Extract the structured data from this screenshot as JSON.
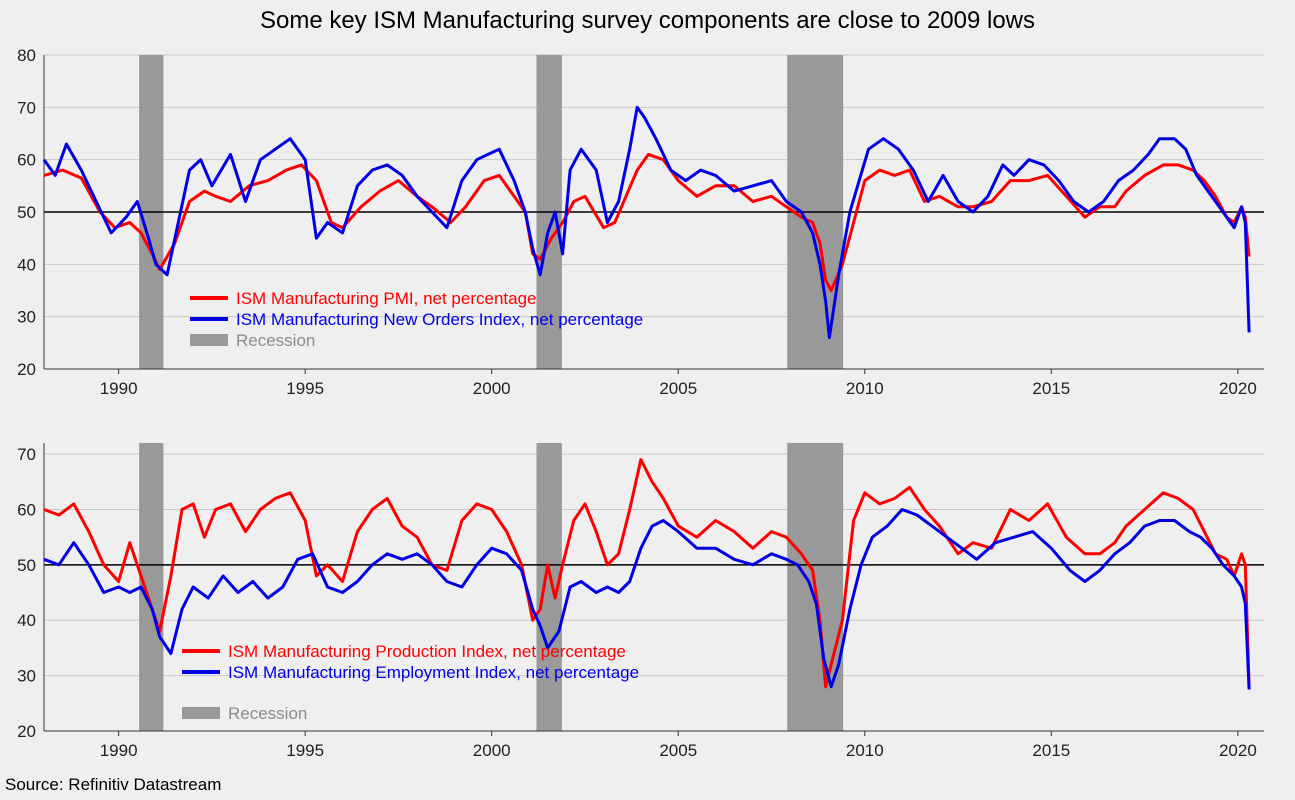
{
  "title": "Some key ISM Manufacturing survey components are close to 2009 lows",
  "source": "Source: Refinitiv Datastream",
  "colors": {
    "red": "#ff0000",
    "blue": "#0000e6",
    "recession": "#999999",
    "recession_text": "#8c8c8c",
    "background": "#efefef"
  },
  "recessions": [
    [
      1990.55,
      1991.2
    ],
    [
      2001.2,
      2001.88
    ],
    [
      2007.92,
      2009.42
    ]
  ],
  "chart_data": [
    {
      "type": "line",
      "ylim": [
        20,
        80
      ],
      "yticks": [
        20,
        30,
        40,
        50,
        60,
        70,
        80
      ],
      "xlim": [
        1988.0,
        2020.7
      ],
      "xticks": [
        1990,
        1995,
        2000,
        2005,
        2010,
        2015,
        2020
      ],
      "reference_line": 50,
      "legend": [
        "ISM Manufacturing PMI, net percentage",
        "ISM Manufacturing New Orders Index, net percentage",
        "Recession"
      ],
      "legend_placement": "lower-left",
      "series": [
        {
          "name": "ISM Manufacturing PMI, net percentage",
          "color": "#ff0000",
          "x": [
            1988,
            1988.5,
            1989,
            1989.5,
            1989.9,
            1990.3,
            1990.6,
            1990.9,
            1991.1,
            1991.5,
            1991.9,
            1992.3,
            1992.6,
            1993,
            1993.5,
            1994,
            1994.5,
            1994.9,
            1995.3,
            1995.7,
            1996,
            1996.5,
            1997,
            1997.5,
            1998,
            1998.4,
            1998.9,
            1999.3,
            1999.8,
            2000.2,
            2000.6,
            2000.9,
            2001.1,
            2001.3,
            2001.6,
            2001.9,
            2002.2,
            2002.5,
            2003,
            2003.3,
            2003.6,
            2003.9,
            2004.2,
            2004.6,
            2005,
            2005.5,
            2006,
            2006.5,
            2007,
            2007.5,
            2007.9,
            2008.3,
            2008.6,
            2008.8,
            2008.95,
            2009.1,
            2009.4,
            2009.7,
            2010,
            2010.4,
            2010.8,
            2011.2,
            2011.6,
            2012,
            2012.5,
            2012.9,
            2013.4,
            2013.9,
            2014.4,
            2014.9,
            2015.4,
            2015.9,
            2016.3,
            2016.7,
            2017,
            2017.5,
            2018,
            2018.4,
            2018.8,
            2019.1,
            2019.4,
            2019.7,
            2019.9,
            2020.1,
            2020.2,
            2020.3
          ],
          "y": [
            57,
            58,
            56.5,
            50,
            47,
            48,
            46,
            42,
            39,
            44,
            52,
            54,
            53,
            52,
            55,
            56,
            58,
            59,
            56,
            48,
            47,
            51,
            54,
            56,
            53,
            51,
            48,
            51,
            56,
            57,
            53,
            50,
            42,
            41,
            45,
            48,
            52,
            53,
            47,
            48,
            53,
            58,
            61,
            60,
            56,
            53,
            55,
            55,
            52,
            53,
            51,
            49,
            48,
            44,
            37,
            35,
            40,
            48,
            56,
            58,
            57,
            58,
            52,
            53,
            51,
            51,
            52,
            56,
            56,
            57,
            53,
            49,
            51,
            51,
            54,
            57,
            59,
            59,
            58,
            56,
            53,
            49,
            48,
            51,
            49,
            41.5
          ]
        },
        {
          "name": "ISM Manufacturing New Orders Index, net percentage",
          "color": "#0000e6",
          "x": [
            1988,
            1988.3,
            1988.6,
            1989,
            1989.4,
            1989.8,
            1990.2,
            1990.5,
            1990.8,
            1991,
            1991.3,
            1991.6,
            1991.9,
            1992.2,
            1992.5,
            1993,
            1993.4,
            1993.8,
            1994.2,
            1994.6,
            1995,
            1995.3,
            1995.6,
            1996,
            1996.4,
            1996.8,
            1997.2,
            1997.6,
            1998,
            1998.4,
            1998.8,
            1999.2,
            1999.6,
            1999.9,
            2000.2,
            2000.6,
            2000.9,
            2001.1,
            2001.3,
            2001.5,
            2001.7,
            2001.9,
            2002.1,
            2002.4,
            2002.8,
            2003.1,
            2003.4,
            2003.7,
            2003.9,
            2004.1,
            2004.4,
            2004.8,
            2005.2,
            2005.6,
            2006,
            2006.5,
            2007,
            2007.5,
            2007.9,
            2008.3,
            2008.6,
            2008.8,
            2008.95,
            2009.05,
            2009.3,
            2009.6,
            2009.85,
            2010.1,
            2010.5,
            2010.9,
            2011.3,
            2011.7,
            2012.1,
            2012.5,
            2012.9,
            2013.3,
            2013.7,
            2014,
            2014.4,
            2014.8,
            2015.2,
            2015.6,
            2016,
            2016.4,
            2016.8,
            2017.2,
            2017.6,
            2017.9,
            2018.3,
            2018.6,
            2018.9,
            2019.2,
            2019.6,
            2019.9,
            2020.1,
            2020.2,
            2020.3
          ],
          "y": [
            60,
            57,
            63,
            58,
            52,
            46,
            49,
            52,
            45,
            40,
            38,
            48,
            58,
            60,
            55,
            61,
            52,
            60,
            62,
            64,
            60,
            45,
            48,
            46,
            55,
            58,
            59,
            57,
            53,
            50,
            47,
            56,
            60,
            61,
            62,
            56,
            50,
            43,
            38,
            46,
            50,
            42,
            58,
            62,
            58,
            48,
            52,
            62,
            70,
            68,
            64,
            58,
            56,
            58,
            57,
            54,
            55,
            56,
            52,
            50,
            46,
            40,
            33,
            26,
            38,
            50,
            56,
            62,
            64,
            62,
            58,
            52,
            57,
            52,
            50,
            53,
            59,
            57,
            60,
            59,
            56,
            52,
            50,
            52,
            56,
            58,
            61,
            64,
            64,
            62,
            57,
            54,
            50,
            47,
            51,
            48,
            27
          ]
        }
      ]
    },
    {
      "type": "line",
      "ylim": [
        20,
        72
      ],
      "yticks": [
        20,
        30,
        40,
        50,
        60,
        70
      ],
      "xlim": [
        1988.0,
        2020.7
      ],
      "xticks": [
        1990,
        1995,
        2000,
        2005,
        2010,
        2015,
        2020
      ],
      "reference_line": 50,
      "legend": [
        "ISM Manufacturing Production Index, net percentage",
        "ISM Manufacturing Employment Index, net percentage",
        "Recession"
      ],
      "legend_placement": "lower-left",
      "series": [
        {
          "name": "ISM Manufacturing Production Index, net percentage",
          "color": "#ff0000",
          "x": [
            1988,
            1988.4,
            1988.8,
            1989.2,
            1989.6,
            1990,
            1990.3,
            1990.6,
            1990.9,
            1991.1,
            1991.4,
            1991.7,
            1992,
            1992.3,
            1992.6,
            1993,
            1993.4,
            1993.8,
            1994.2,
            1994.6,
            1995,
            1995.3,
            1995.6,
            1996,
            1996.4,
            1996.8,
            1997.2,
            1997.6,
            1998,
            1998.4,
            1998.8,
            1999.2,
            1999.6,
            2000,
            2000.4,
            2000.8,
            2001.1,
            2001.3,
            2001.5,
            2001.7,
            2001.9,
            2002.2,
            2002.5,
            2002.8,
            2003.1,
            2003.4,
            2003.7,
            2004,
            2004.3,
            2004.6,
            2005,
            2005.5,
            2006,
            2006.5,
            2007,
            2007.5,
            2007.9,
            2008.3,
            2008.6,
            2008.8,
            2008.95,
            2009.1,
            2009.4,
            2009.7,
            2010,
            2010.4,
            2010.8,
            2011.2,
            2011.6,
            2012,
            2012.5,
            2012.9,
            2013.4,
            2013.9,
            2014.4,
            2014.9,
            2015.4,
            2015.9,
            2016.3,
            2016.7,
            2017,
            2017.5,
            2018,
            2018.4,
            2018.8,
            2019.1,
            2019.4,
            2019.7,
            2019.9,
            2020.1,
            2020.2,
            2020.3
          ],
          "y": [
            60,
            59,
            61,
            56,
            50,
            47,
            54,
            48,
            42,
            38,
            48,
            60,
            61,
            55,
            60,
            61,
            56,
            60,
            62,
            63,
            58,
            48,
            50,
            47,
            56,
            60,
            62,
            57,
            55,
            50,
            49,
            58,
            61,
            60,
            56,
            50,
            40,
            42,
            50,
            44,
            50,
            58,
            61,
            56,
            50,
            52,
            60,
            69,
            65,
            62,
            57,
            55,
            58,
            56,
            53,
            56,
            55,
            52,
            49,
            40,
            28,
            32,
            40,
            58,
            63,
            61,
            62,
            64,
            60,
            57,
            52,
            54,
            53,
            60,
            58,
            61,
            55,
            52,
            52,
            54,
            57,
            60,
            63,
            62,
            60,
            56,
            52,
            51,
            48,
            52,
            50,
            28
          ]
        },
        {
          "name": "ISM Manufacturing Employment Index, net percentage",
          "color": "#0000e6",
          "x": [
            1988,
            1988.4,
            1988.8,
            1989.2,
            1989.6,
            1990,
            1990.3,
            1990.6,
            1990.9,
            1991.1,
            1991.4,
            1991.7,
            1992,
            1992.4,
            1992.8,
            1993.2,
            1993.6,
            1994,
            1994.4,
            1994.8,
            1995.2,
            1995.6,
            1996,
            1996.4,
            1996.8,
            1997.2,
            1997.6,
            1998,
            1998.4,
            1998.8,
            1999.2,
            1999.6,
            2000,
            2000.4,
            2000.8,
            2001.1,
            2001.3,
            2001.5,
            2001.8,
            2002.1,
            2002.4,
            2002.8,
            2003.1,
            2003.4,
            2003.7,
            2004,
            2004.3,
            2004.6,
            2005,
            2005.5,
            2006,
            2006.5,
            2007,
            2007.5,
            2007.9,
            2008.2,
            2008.5,
            2008.7,
            2008.9,
            2009.1,
            2009.3,
            2009.6,
            2009.9,
            2010.2,
            2010.6,
            2011,
            2011.4,
            2011.8,
            2012.2,
            2012.6,
            2013,
            2013.5,
            2014,
            2014.5,
            2015,
            2015.5,
            2015.9,
            2016.3,
            2016.7,
            2017.1,
            2017.5,
            2017.9,
            2018.3,
            2018.7,
            2019,
            2019.3,
            2019.6,
            2019.9,
            2020.1,
            2020.2,
            2020.3
          ],
          "y": [
            51,
            50,
            54,
            50,
            45,
            46,
            45,
            46,
            42,
            37,
            34,
            42,
            46,
            44,
            48,
            45,
            47,
            44,
            46,
            51,
            52,
            46,
            45,
            47,
            50,
            52,
            51,
            52,
            50,
            47,
            46,
            50,
            53,
            52,
            49,
            42,
            39,
            35,
            38,
            46,
            47,
            45,
            46,
            45,
            47,
            53,
            57,
            58,
            56,
            53,
            53,
            51,
            50,
            52,
            51,
            50,
            47,
            43,
            33,
            28,
            32,
            42,
            50,
            55,
            57,
            60,
            59,
            57,
            55,
            53,
            51,
            54,
            55,
            56,
            53,
            49,
            47,
            49,
            52,
            54,
            57,
            58,
            58,
            56,
            55,
            53,
            50,
            48,
            46,
            43,
            27.5
          ]
        }
      ]
    }
  ]
}
